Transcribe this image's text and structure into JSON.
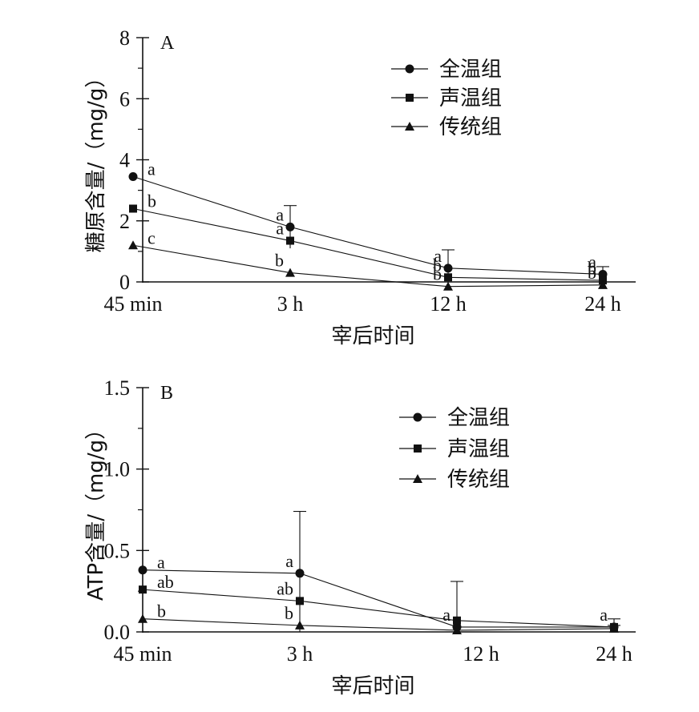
{
  "chart_data": [
    {
      "type": "line",
      "panel_label": "A",
      "ylabel": "糖原含量/（mg/g）",
      "xlabel": "宰后时间",
      "categories": [
        "45 min",
        "3 h",
        "12 h",
        "24 h"
      ],
      "ylim": [
        0,
        8
      ],
      "yticks": [
        "0",
        "2",
        "4",
        "6",
        "8"
      ],
      "legend": [
        "全温组",
        "声温组",
        "传统组"
      ],
      "legend_position": "top-right",
      "series": [
        {
          "name": "全温组",
          "marker": "circle",
          "values": [
            3.45,
            1.8,
            0.45,
            0.25
          ],
          "errors": [
            0,
            0.7,
            0.6,
            0.25
          ],
          "letters": [
            "a",
            "a",
            "a",
            "a"
          ]
        },
        {
          "name": "声温组",
          "marker": "square",
          "values": [
            2.4,
            1.35,
            0.15,
            0.05
          ],
          "errors": [
            0,
            0,
            0,
            0
          ],
          "letters": [
            "b",
            "a",
            "b",
            "b"
          ]
        },
        {
          "name": "传统组",
          "marker": "triangle",
          "values": [
            1.2,
            0.3,
            -0.15,
            -0.1
          ],
          "errors": [
            0,
            0,
            0,
            0
          ],
          "letters": [
            "c",
            "b",
            "b",
            "b"
          ]
        }
      ]
    },
    {
      "type": "line",
      "panel_label": "B",
      "ylabel": "ATP含量/（mg/g）",
      "xlabel": "宰后时间",
      "categories": [
        "45 min",
        "3 h",
        "12 h",
        "24 h"
      ],
      "ylim": [
        0,
        1.5
      ],
      "yticks": [
        "0.0",
        "0.5",
        "1.0",
        "1.5"
      ],
      "legend": [
        "全温组",
        "声温组",
        "传统组"
      ],
      "legend_position": "top-right",
      "series": [
        {
          "name": "全温组",
          "marker": "circle",
          "values": [
            0.38,
            0.36,
            0.03,
            0.03
          ],
          "errors": [
            0,
            0.38,
            0,
            0.01
          ],
          "letters": [
            "a",
            "a",
            "a",
            "a"
          ]
        },
        {
          "name": "声温组",
          "marker": "square",
          "values": [
            0.26,
            0.19,
            0.07,
            0.03
          ],
          "errors": [
            0,
            0,
            0.24,
            0.05
          ],
          "letters": [
            "ab",
            "ab",
            "",
            ""
          ]
        },
        {
          "name": "传统组",
          "marker": "triangle",
          "values": [
            0.08,
            0.04,
            0.01,
            0.02
          ],
          "errors": [
            0,
            0,
            0,
            0
          ],
          "letters": [
            "b",
            "b",
            "",
            ""
          ]
        }
      ]
    }
  ]
}
